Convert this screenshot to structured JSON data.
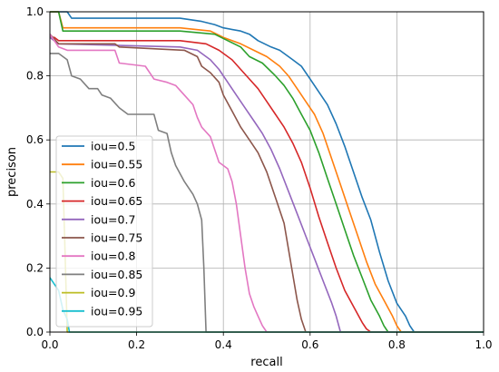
{
  "chart_data": {
    "type": "line",
    "xlabel": "recall",
    "ylabel": "precison",
    "xlim": [
      0,
      1
    ],
    "ylim": [
      0,
      1
    ],
    "grid": true,
    "legend_position": "lower-left",
    "xticks": [
      "0.0",
      "0.2",
      "0.4",
      "0.6",
      "0.8",
      "1.0"
    ],
    "yticks": [
      "0.0",
      "0.2",
      "0.4",
      "0.6",
      "0.8",
      "1.0"
    ],
    "series": [
      {
        "name": "iou=0.5",
        "color": "#1f77b4",
        "points": [
          [
            0,
            1
          ],
          [
            0.04,
            1
          ],
          [
            0.05,
            0.98
          ],
          [
            0.16,
            0.98
          ],
          [
            0.3,
            0.98
          ],
          [
            0.35,
            0.97
          ],
          [
            0.38,
            0.96
          ],
          [
            0.4,
            0.95
          ],
          [
            0.44,
            0.94
          ],
          [
            0.46,
            0.93
          ],
          [
            0.48,
            0.91
          ],
          [
            0.51,
            0.89
          ],
          [
            0.53,
            0.88
          ],
          [
            0.56,
            0.85
          ],
          [
            0.58,
            0.83
          ],
          [
            0.6,
            0.79
          ],
          [
            0.62,
            0.75
          ],
          [
            0.64,
            0.71
          ],
          [
            0.66,
            0.65
          ],
          [
            0.68,
            0.58
          ],
          [
            0.7,
            0.5
          ],
          [
            0.72,
            0.42
          ],
          [
            0.74,
            0.35
          ],
          [
            0.76,
            0.25
          ],
          [
            0.78,
            0.16
          ],
          [
            0.8,
            0.09
          ],
          [
            0.82,
            0.05
          ],
          [
            0.83,
            0.02
          ],
          [
            0.84,
            0
          ]
        ]
      },
      {
        "name": "iou=0.55",
        "color": "#ff7f0e",
        "points": [
          [
            0,
            1
          ],
          [
            0.02,
            1
          ],
          [
            0.03,
            0.95
          ],
          [
            0.3,
            0.95
          ],
          [
            0.37,
            0.94
          ],
          [
            0.4,
            0.92
          ],
          [
            0.44,
            0.9
          ],
          [
            0.47,
            0.88
          ],
          [
            0.5,
            0.86
          ],
          [
            0.53,
            0.83
          ],
          [
            0.55,
            0.8
          ],
          [
            0.57,
            0.76
          ],
          [
            0.59,
            0.72
          ],
          [
            0.61,
            0.68
          ],
          [
            0.63,
            0.62
          ],
          [
            0.65,
            0.54
          ],
          [
            0.67,
            0.46
          ],
          [
            0.69,
            0.38
          ],
          [
            0.71,
            0.3
          ],
          [
            0.73,
            0.22
          ],
          [
            0.75,
            0.15
          ],
          [
            0.77,
            0.1
          ],
          [
            0.79,
            0.05
          ],
          [
            0.8,
            0.02
          ],
          [
            0.81,
            0
          ]
        ]
      },
      {
        "name": "iou=0.6",
        "color": "#2ca02c",
        "points": [
          [
            0,
            1
          ],
          [
            0.02,
            1
          ],
          [
            0.03,
            0.94
          ],
          [
            0.3,
            0.94
          ],
          [
            0.38,
            0.93
          ],
          [
            0.41,
            0.91
          ],
          [
            0.44,
            0.89
          ],
          [
            0.46,
            0.86
          ],
          [
            0.49,
            0.84
          ],
          [
            0.52,
            0.8
          ],
          [
            0.54,
            0.77
          ],
          [
            0.56,
            0.73
          ],
          [
            0.58,
            0.68
          ],
          [
            0.6,
            0.63
          ],
          [
            0.62,
            0.56
          ],
          [
            0.64,
            0.48
          ],
          [
            0.66,
            0.4
          ],
          [
            0.68,
            0.32
          ],
          [
            0.7,
            0.24
          ],
          [
            0.72,
            0.17
          ],
          [
            0.74,
            0.1
          ],
          [
            0.76,
            0.05
          ],
          [
            0.77,
            0.02
          ],
          [
            0.78,
            0
          ]
        ]
      },
      {
        "name": "iou=0.65",
        "color": "#d62728",
        "points": [
          [
            0,
            0.92
          ],
          [
            0.01,
            0.92
          ],
          [
            0.02,
            0.91
          ],
          [
            0.3,
            0.91
          ],
          [
            0.36,
            0.9
          ],
          [
            0.39,
            0.88
          ],
          [
            0.42,
            0.85
          ],
          [
            0.44,
            0.82
          ],
          [
            0.46,
            0.79
          ],
          [
            0.48,
            0.76
          ],
          [
            0.5,
            0.72
          ],
          [
            0.52,
            0.68
          ],
          [
            0.54,
            0.64
          ],
          [
            0.56,
            0.59
          ],
          [
            0.58,
            0.53
          ],
          [
            0.6,
            0.45
          ],
          [
            0.62,
            0.36
          ],
          [
            0.64,
            0.28
          ],
          [
            0.66,
            0.2
          ],
          [
            0.68,
            0.13
          ],
          [
            0.7,
            0.08
          ],
          [
            0.72,
            0.03
          ],
          [
            0.73,
            0.01
          ],
          [
            0.74,
            0
          ]
        ]
      },
      {
        "name": "iou=0.7",
        "color": "#9467bd",
        "points": [
          [
            0,
            0.92
          ],
          [
            0.01,
            0.91
          ],
          [
            0.02,
            0.9
          ],
          [
            0.3,
            0.89
          ],
          [
            0.34,
            0.88
          ],
          [
            0.37,
            0.85
          ],
          [
            0.39,
            0.82
          ],
          [
            0.41,
            0.78
          ],
          [
            0.43,
            0.74
          ],
          [
            0.45,
            0.7
          ],
          [
            0.47,
            0.66
          ],
          [
            0.49,
            0.62
          ],
          [
            0.51,
            0.57
          ],
          [
            0.53,
            0.51
          ],
          [
            0.55,
            0.44
          ],
          [
            0.57,
            0.37
          ],
          [
            0.59,
            0.3
          ],
          [
            0.61,
            0.23
          ],
          [
            0.63,
            0.16
          ],
          [
            0.65,
            0.09
          ],
          [
            0.66,
            0.05
          ],
          [
            0.67,
            0
          ]
        ]
      },
      {
        "name": "iou=0.75",
        "color": "#8c564b",
        "points": [
          [
            0,
            0.93
          ],
          [
            0.02,
            0.9
          ],
          [
            0.15,
            0.9
          ],
          [
            0.16,
            0.89
          ],
          [
            0.31,
            0.88
          ],
          [
            0.34,
            0.86
          ],
          [
            0.35,
            0.83
          ],
          [
            0.37,
            0.81
          ],
          [
            0.39,
            0.78
          ],
          [
            0.4,
            0.74
          ],
          [
            0.42,
            0.69
          ],
          [
            0.44,
            0.64
          ],
          [
            0.46,
            0.6
          ],
          [
            0.48,
            0.56
          ],
          [
            0.5,
            0.5
          ],
          [
            0.52,
            0.42
          ],
          [
            0.54,
            0.34
          ],
          [
            0.55,
            0.26
          ],
          [
            0.56,
            0.18
          ],
          [
            0.57,
            0.1
          ],
          [
            0.58,
            0.04
          ],
          [
            0.59,
            0
          ]
        ]
      },
      {
        "name": "iou=0.8",
        "color": "#e377c2",
        "points": [
          [
            0,
            0.93
          ],
          [
            0.02,
            0.89
          ],
          [
            0.04,
            0.88
          ],
          [
            0.15,
            0.88
          ],
          [
            0.16,
            0.84
          ],
          [
            0.22,
            0.83
          ],
          [
            0.24,
            0.79
          ],
          [
            0.27,
            0.78
          ],
          [
            0.29,
            0.77
          ],
          [
            0.31,
            0.74
          ],
          [
            0.33,
            0.71
          ],
          [
            0.34,
            0.67
          ],
          [
            0.35,
            0.64
          ],
          [
            0.37,
            0.61
          ],
          [
            0.38,
            0.57
          ],
          [
            0.39,
            0.53
          ],
          [
            0.41,
            0.51
          ],
          [
            0.42,
            0.47
          ],
          [
            0.43,
            0.4
          ],
          [
            0.44,
            0.3
          ],
          [
            0.45,
            0.2
          ],
          [
            0.46,
            0.12
          ],
          [
            0.47,
            0.08
          ],
          [
            0.48,
            0.05
          ],
          [
            0.49,
            0.02
          ],
          [
            0.5,
            0
          ]
        ]
      },
      {
        "name": "iou=0.85",
        "color": "#7f7f7f",
        "points": [
          [
            0,
            0.87
          ],
          [
            0.02,
            0.87
          ],
          [
            0.04,
            0.85
          ],
          [
            0.05,
            0.8
          ],
          [
            0.07,
            0.79
          ],
          [
            0.09,
            0.76
          ],
          [
            0.11,
            0.76
          ],
          [
            0.12,
            0.74
          ],
          [
            0.14,
            0.73
          ],
          [
            0.16,
            0.7
          ],
          [
            0.18,
            0.68
          ],
          [
            0.24,
            0.68
          ],
          [
            0.25,
            0.63
          ],
          [
            0.27,
            0.62
          ],
          [
            0.28,
            0.56
          ],
          [
            0.29,
            0.52
          ],
          [
            0.31,
            0.47
          ],
          [
            0.33,
            0.43
          ],
          [
            0.34,
            0.4
          ],
          [
            0.35,
            0.35
          ],
          [
            0.355,
            0.2
          ],
          [
            0.36,
            0
          ]
        ]
      },
      {
        "name": "iou=0.9",
        "color": "#bcbd22",
        "points": [
          [
            0,
            0.5
          ],
          [
            0.02,
            0.5
          ],
          [
            0.03,
            0.48
          ],
          [
            0.035,
            0.25
          ],
          [
            0.04,
            0
          ]
        ]
      },
      {
        "name": "iou=0.95",
        "color": "#17becf",
        "points": [
          [
            0,
            0.17
          ],
          [
            0.01,
            0.15
          ],
          [
            0.02,
            0.13
          ],
          [
            0.03,
            0.07
          ],
          [
            0.04,
            0.04
          ],
          [
            0.045,
            0
          ]
        ]
      }
    ]
  }
}
